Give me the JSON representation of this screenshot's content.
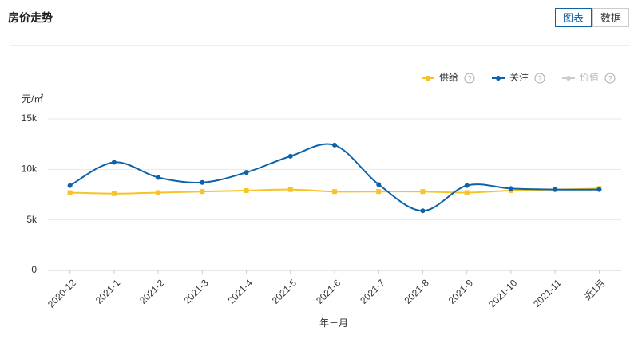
{
  "header": {
    "title": "房价走势",
    "buttons": [
      "图表",
      "数据"
    ],
    "active_button": 0
  },
  "chart_data": {
    "type": "line",
    "ylabel": "元/㎡",
    "xlabel": "年－月",
    "categories": [
      "2020-12",
      "2021-1",
      "2021-2",
      "2021-3",
      "2021-4",
      "2021-5",
      "2021-6",
      "2021-7",
      "2021-8",
      "2021-9",
      "2021-10",
      "2021-11",
      "近1月"
    ],
    "series": [
      {
        "name": "供给",
        "color": "#f7c325",
        "marker": "square",
        "values": [
          7700,
          7600,
          7700,
          7800,
          7900,
          8000,
          7800,
          7800,
          7800,
          7700,
          7900,
          8000,
          8100
        ]
      },
      {
        "name": "关注",
        "color": "#0d62a8",
        "marker": "circle",
        "values": [
          8400,
          10700,
          9200,
          8700,
          9700,
          11300,
          12400,
          8500,
          5900,
          8400,
          8100,
          8000,
          8000
        ]
      },
      {
        "name": "价值",
        "color": "#cccccc",
        "marker": "circle",
        "visible": false
      }
    ],
    "ylim": [
      0,
      15000
    ],
    "yticks": [
      0,
      {
        "value": 5000,
        "label": "5k"
      },
      {
        "value": 10000,
        "label": "10k"
      },
      {
        "value": 15000,
        "label": "15k"
      }
    ],
    "grid": true,
    "legend": "top-right",
    "smooth": true
  }
}
